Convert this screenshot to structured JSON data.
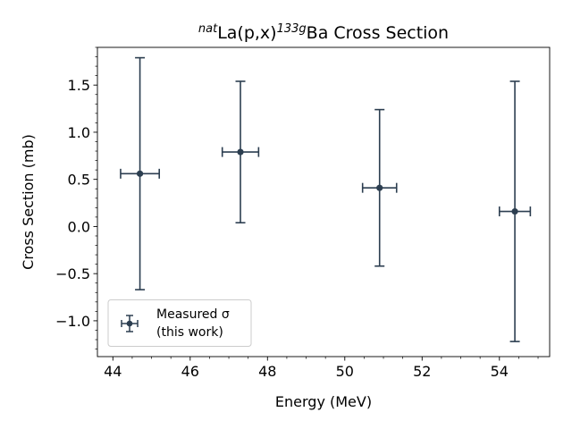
{
  "chart_data": {
    "type": "scatter",
    "title": {
      "sup1": "nat",
      "main1": "La(p,x)",
      "sup2": "133g",
      "main2": "Ba Cross Section"
    },
    "xlabel": "Energy (MeV)",
    "ylabel": "Cross Section (mb)",
    "xlim": [
      43.6,
      55.3
    ],
    "ylim": [
      -1.38,
      1.9
    ],
    "xticks": [
      44,
      46,
      48,
      50,
      52,
      54
    ],
    "xtick_labels": [
      "44",
      "46",
      "48",
      "50",
      "52",
      "54"
    ],
    "yticks": [
      -1.0,
      -0.5,
      0.0,
      0.5,
      1.0,
      1.5
    ],
    "ytick_labels": [
      "−1.0",
      "−0.5",
      "0.0",
      "0.5",
      "1.0",
      "1.5"
    ],
    "x_minor_step": 0.5,
    "y_minor_step": 0.1,
    "grid": false,
    "legend_position": "lower-left",
    "series": [
      {
        "name_line1": "Measured σ",
        "name_line2": "(this work)",
        "color": "#2c3e50",
        "points": [
          {
            "x": 44.7,
            "y": 0.56,
            "xerr": 0.5,
            "yerr": 1.23
          },
          {
            "x": 47.3,
            "y": 0.79,
            "xerr": 0.47,
            "yerr": 0.75
          },
          {
            "x": 50.9,
            "y": 0.41,
            "xerr": 0.44,
            "yerr": 0.83
          },
          {
            "x": 54.4,
            "y": 0.16,
            "xerr": 0.4,
            "yerr": 1.38
          }
        ]
      }
    ]
  }
}
